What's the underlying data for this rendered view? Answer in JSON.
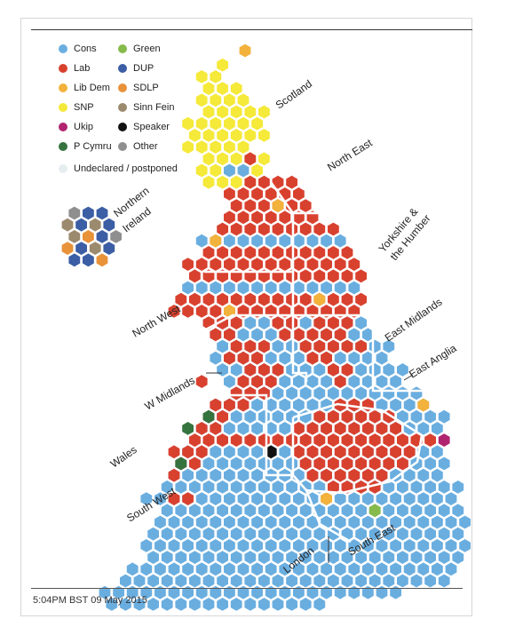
{
  "legend": [
    {
      "label": "Cons",
      "color": "#6aaee0"
    },
    {
      "label": "Lab",
      "color": "#d9412f"
    },
    {
      "label": "Lib Dem",
      "color": "#f3b23b"
    },
    {
      "label": "SNP",
      "color": "#f5e939"
    },
    {
      "label": "Ukip",
      "color": "#b0246f"
    },
    {
      "label": "P Cymru",
      "color": "#35733f"
    },
    {
      "label": "Green",
      "color": "#86bb4c"
    },
    {
      "label": "DUP",
      "color": "#3b5ea5"
    },
    {
      "label": "SDLP",
      "color": "#e8923a"
    },
    {
      "label": "Sinn Fein",
      "color": "#9c8a6e"
    },
    {
      "label": "Speaker",
      "color": "#111111"
    },
    {
      "label": "Other",
      "color": "#8f8f8f"
    }
  ],
  "undeclared": {
    "label": "Undeclared / postponed",
    "color": "#e6eef0"
  },
  "regions": {
    "scotland": "Scotland",
    "north_east": "North East",
    "yorkshire_1": "Yorkshire &",
    "yorkshire_2": "the Humber",
    "north_west": "North West",
    "east_midlands": "East Midlands",
    "east_anglia": "East Anglia",
    "w_midlands": "W Midlands",
    "wales": "Wales",
    "south_west": "South West",
    "london": "London",
    "south_east": "South East",
    "ni_1": "Northern",
    "ni_2": "Ireland"
  },
  "timestamp": "5:04PM BST 09 May 2015"
}
